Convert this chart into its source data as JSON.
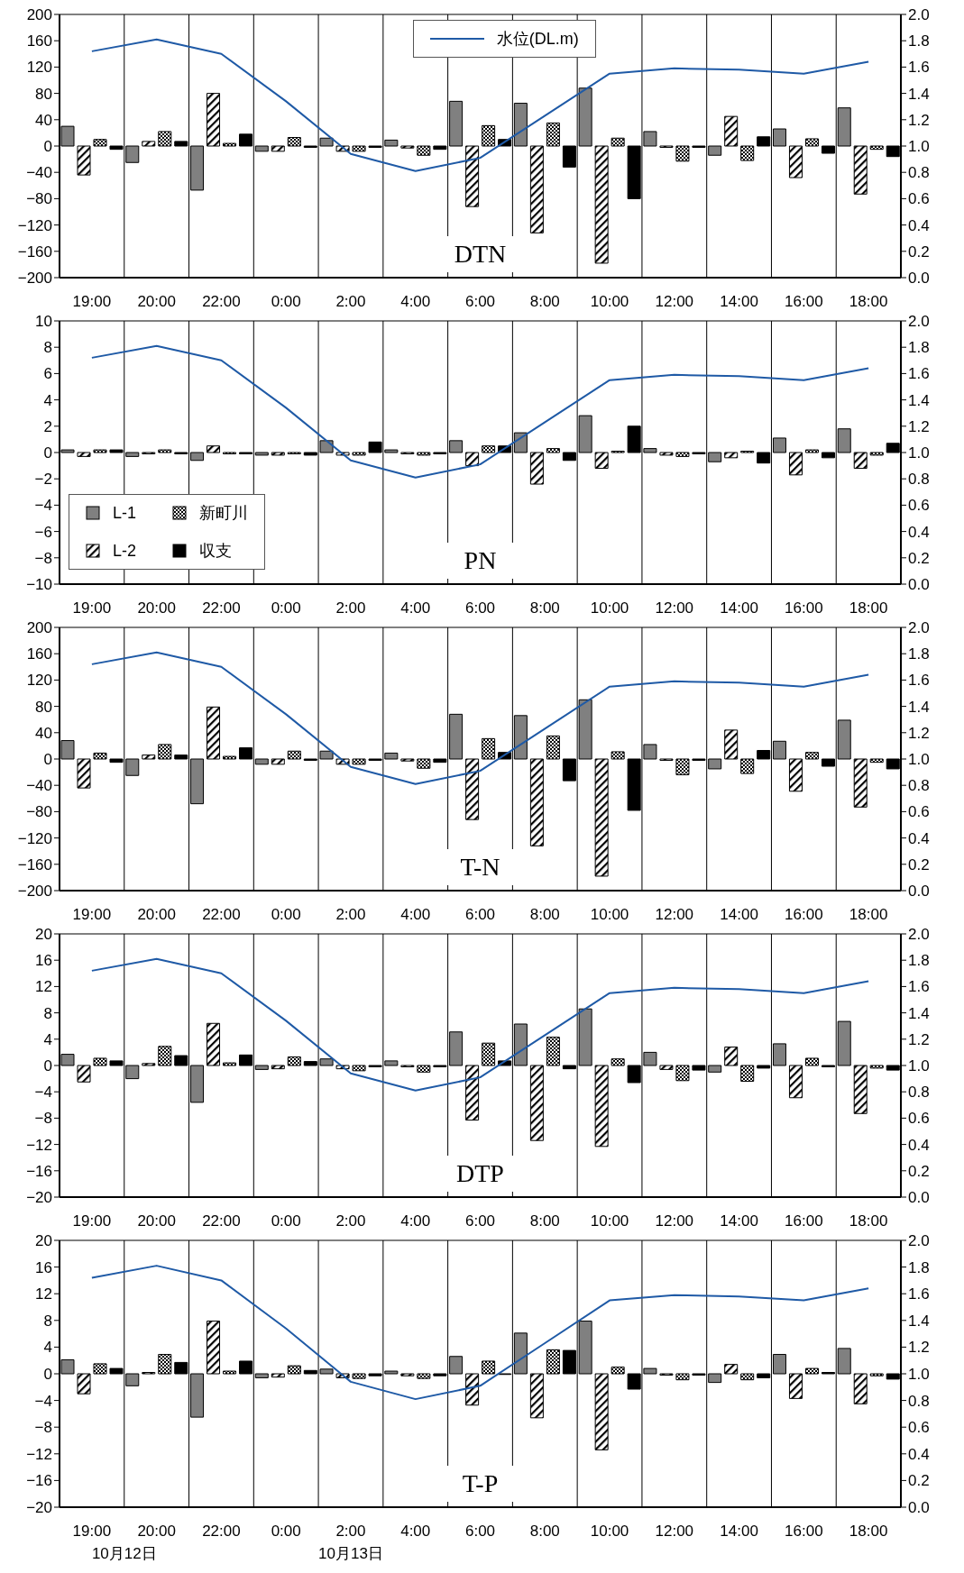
{
  "chart_data": [
    {
      "type": "bar",
      "title": "DTN",
      "categories": [
        "19:00",
        "20:00",
        "22:00",
        "0:00",
        "2:00",
        "4:00",
        "6:00",
        "8:00",
        "10:00",
        "12:00",
        "14:00",
        "16:00",
        "18:00"
      ],
      "series": [
        {
          "color": "#808080",
          "values": [
            30,
            -25,
            -67,
            -8,
            12,
            9,
            68,
            65,
            88,
            22,
            -14,
            26,
            58
          ]
        },
        {
          "color": "#000000",
          "values": [
            -44,
            7,
            80,
            -8,
            -8,
            -3,
            -92,
            -132,
            -178,
            -2,
            45,
            -48,
            -73
          ]
        },
        {
          "color": "#000000",
          "values": [
            10,
            22,
            4,
            13,
            -8,
            -14,
            31,
            35,
            12,
            -23,
            -22,
            11,
            -5
          ]
        },
        {
          "color": "#000000",
          "values": [
            -5,
            7,
            18,
            -2,
            -2,
            -5,
            10,
            -32,
            -80,
            -2,
            14,
            -11,
            -16
          ]
        },
        {
          "type": "line",
          "axis": "y2",
          "name": "水位(DL.m)",
          "color": "#1f5aa6",
          "values": [
            1.72,
            1.81,
            1.7,
            1.34,
            0.94,
            0.81,
            0.91,
            1.23,
            1.55,
            1.59,
            1.58,
            1.55,
            1.64
          ]
        }
      ],
      "ylim": [
        -200,
        200
      ],
      "yticks": [
        -200,
        -160,
        -120,
        -80,
        -40,
        0,
        40,
        80,
        120,
        160,
        200
      ],
      "y2lim": [
        0,
        2
      ],
      "y2ticks": [
        {
          "value": 0,
          "label": "0.0"
        },
        {
          "value": 0.2,
          "label": "0.2"
        },
        {
          "value": 0.4,
          "label": "0.4"
        },
        {
          "value": 0.6,
          "label": "0.6"
        },
        {
          "value": 0.8,
          "label": "0.8"
        },
        {
          "value": 1,
          "label": "1.0"
        },
        {
          "value": 1.2,
          "label": "1.2"
        },
        {
          "value": 1.4,
          "label": "1.4"
        },
        {
          "value": 1.6,
          "label": "1.6"
        },
        {
          "value": 1.8,
          "label": "1.8"
        },
        {
          "value": 2,
          "label": "2.0"
        }
      ],
      "grid": true,
      "legend": "top"
    },
    {
      "type": "bar",
      "title": "PN",
      "categories": [
        "19:00",
        "20:00",
        "22:00",
        "0:00",
        "2:00",
        "4:00",
        "6:00",
        "8:00",
        "10:00",
        "12:00",
        "14:00",
        "16:00",
        "18:00"
      ],
      "series": [
        {
          "name": "L-1",
          "color": "#808080",
          "values": [
            0.2,
            -0.3,
            -0.6,
            -0.2,
            0.9,
            0.2,
            0.9,
            1.5,
            2.8,
            0.3,
            -0.7,
            1.1,
            1.8
          ]
        },
        {
          "name": "L-2",
          "color": "#000000",
          "values": [
            -0.3,
            -0.1,
            0.5,
            -0.2,
            -0.2,
            -0.1,
            -1.0,
            -2.4,
            -1.2,
            -0.2,
            -0.4,
            -1.7,
            -1.2
          ]
        },
        {
          "name": "新町川",
          "color": "#000000",
          "values": [
            0.2,
            0.2,
            -0.1,
            -0.1,
            -0.2,
            -0.2,
            0.5,
            0.3,
            0.1,
            -0.3,
            0.1,
            0.2,
            -0.2
          ]
        },
        {
          "name": "収支",
          "color": "#000000",
          "values": [
            0.2,
            -0.1,
            -0.1,
            -0.2,
            0.8,
            -0.1,
            0.5,
            -0.6,
            2.0,
            -0.1,
            -0.8,
            -0.4,
            0.7
          ]
        },
        {
          "type": "line",
          "axis": "y2",
          "color": "#1f5aa6",
          "values": [
            1.72,
            1.81,
            1.7,
            1.34,
            0.94,
            0.81,
            0.91,
            1.23,
            1.55,
            1.59,
            1.58,
            1.55,
            1.64
          ]
        }
      ],
      "ylim": [
        -10,
        10
      ],
      "yticks": [
        -10,
        -8,
        -6,
        -4,
        -2,
        0,
        2,
        4,
        6,
        8,
        10
      ],
      "y2lim": [
        0,
        2
      ],
      "y2ticks": [
        {
          "value": 0,
          "label": "0.0"
        },
        {
          "value": 0.2,
          "label": "0.2"
        },
        {
          "value": 0.4,
          "label": "0.4"
        },
        {
          "value": 0.6,
          "label": "0.6"
        },
        {
          "value": 0.8,
          "label": "0.8"
        },
        {
          "value": 1,
          "label": "1.0"
        },
        {
          "value": 1.2,
          "label": "1.2"
        },
        {
          "value": 1.4,
          "label": "1.4"
        },
        {
          "value": 1.6,
          "label": "1.6"
        },
        {
          "value": 1.8,
          "label": "1.8"
        },
        {
          "value": 2,
          "label": "2.0"
        }
      ],
      "grid": true,
      "legend": "bottom left"
    },
    {
      "type": "bar",
      "title": "T-N",
      "categories": [
        "19:00",
        "20:00",
        "22:00",
        "0:00",
        "2:00",
        "4:00",
        "6:00",
        "8:00",
        "10:00",
        "12:00",
        "14:00",
        "16:00",
        "18:00"
      ],
      "series": [
        {
          "color": "#808080",
          "values": [
            28,
            -25,
            -68,
            -8,
            12,
            9,
            68,
            66,
            90,
            22,
            -15,
            27,
            59
          ]
        },
        {
          "color": "#000000",
          "values": [
            -44,
            6,
            79,
            -8,
            -8,
            -3,
            -92,
            -132,
            -178,
            -2,
            44,
            -49,
            -73
          ]
        },
        {
          "color": "#000000",
          "values": [
            9,
            22,
            4,
            12,
            -8,
            -14,
            31,
            35,
            11,
            -24,
            -22,
            10,
            -5
          ]
        },
        {
          "color": "#000000",
          "values": [
            -5,
            6,
            17,
            -2,
            -2,
            -5,
            10,
            -33,
            -78,
            -2,
            13,
            -11,
            -15
          ]
        },
        {
          "type": "line",
          "axis": "y2",
          "color": "#1f5aa6",
          "values": [
            1.72,
            1.81,
            1.7,
            1.34,
            0.94,
            0.81,
            0.91,
            1.23,
            1.55,
            1.59,
            1.58,
            1.55,
            1.64
          ]
        }
      ],
      "ylim": [
        -200,
        200
      ],
      "yticks": [
        -200,
        -160,
        -120,
        -80,
        -40,
        0,
        40,
        80,
        120,
        160,
        200
      ],
      "y2lim": [
        0,
        2
      ],
      "y2ticks": [
        {
          "value": 0,
          "label": "0.0"
        },
        {
          "value": 0.2,
          "label": "0.2"
        },
        {
          "value": 0.4,
          "label": "0.4"
        },
        {
          "value": 0.6,
          "label": "0.6"
        },
        {
          "value": 0.8,
          "label": "0.8"
        },
        {
          "value": 1,
          "label": "1.0"
        },
        {
          "value": 1.2,
          "label": "1.2"
        },
        {
          "value": 1.4,
          "label": "1.4"
        },
        {
          "value": 1.6,
          "label": "1.6"
        },
        {
          "value": 1.8,
          "label": "1.8"
        },
        {
          "value": 2,
          "label": "2.0"
        }
      ],
      "grid": true
    },
    {
      "type": "bar",
      "title": "DTP",
      "categories": [
        "19:00",
        "20:00",
        "22:00",
        "0:00",
        "2:00",
        "4:00",
        "6:00",
        "8:00",
        "10:00",
        "12:00",
        "14:00",
        "16:00",
        "18:00"
      ],
      "series": [
        {
          "color": "#808080",
          "values": [
            1.7,
            -2.0,
            -5.6,
            -0.6,
            1.0,
            0.7,
            5.1,
            6.3,
            8.6,
            2.0,
            -1.0,
            3.3,
            6.7
          ]
        },
        {
          "color": "#000000",
          "values": [
            -2.5,
            0.3,
            6.4,
            -0.5,
            -0.5,
            -0.2,
            -8.3,
            -11.4,
            -12.3,
            -0.6,
            2.8,
            -4.9,
            -7.3
          ]
        },
        {
          "color": "#000000",
          "values": [
            1.1,
            2.9,
            0.4,
            1.3,
            -0.8,
            -1.0,
            3.4,
            4.3,
            1.0,
            -2.3,
            -2.4,
            1.1,
            -0.4
          ]
        },
        {
          "color": "#000000",
          "values": [
            0.7,
            1.5,
            1.6,
            0.6,
            -0.2,
            -0.2,
            0.7,
            -0.5,
            -2.6,
            -0.7,
            -0.4,
            -0.2,
            -0.7
          ]
        },
        {
          "type": "line",
          "axis": "y2",
          "color": "#1f5aa6",
          "values": [
            1.72,
            1.81,
            1.7,
            1.34,
            0.94,
            0.81,
            0.91,
            1.23,
            1.55,
            1.59,
            1.58,
            1.55,
            1.64
          ]
        }
      ],
      "ylim": [
        -20,
        20
      ],
      "yticks": [
        -20,
        -16,
        -12,
        -8,
        -4,
        0,
        4,
        8,
        12,
        16,
        20
      ],
      "y2lim": [
        0,
        2
      ],
      "y2ticks": [
        {
          "value": 0,
          "label": "0.0"
        },
        {
          "value": 0.2,
          "label": "0.2"
        },
        {
          "value": 0.4,
          "label": "0.4"
        },
        {
          "value": 0.6,
          "label": "0.6"
        },
        {
          "value": 0.8,
          "label": "0.8"
        },
        {
          "value": 1,
          "label": "1.0"
        },
        {
          "value": 1.2,
          "label": "1.2"
        },
        {
          "value": 1.4,
          "label": "1.4"
        },
        {
          "value": 1.6,
          "label": "1.6"
        },
        {
          "value": 1.8,
          "label": "1.8"
        },
        {
          "value": 2,
          "label": "2.0"
        }
      ],
      "grid": true
    },
    {
      "type": "bar",
      "title": "T-P",
      "categories": [
        "19:00",
        "20:00",
        "22:00",
        "0:00",
        "2:00",
        "4:00",
        "6:00",
        "8:00",
        "10:00",
        "12:00",
        "14:00",
        "16:00",
        "18:00"
      ],
      "series": [
        {
          "color": "#808080",
          "values": [
            2.1,
            -1.8,
            -6.5,
            -0.6,
            0.7,
            0.4,
            2.6,
            6.1,
            7.9,
            0.8,
            -1.3,
            2.9,
            3.8
          ]
        },
        {
          "color": "#000000",
          "values": [
            -3.0,
            0.2,
            7.9,
            -0.5,
            -0.6,
            -0.3,
            -4.7,
            -6.6,
            -11.4,
            -0.2,
            1.4,
            -3.7,
            -4.5
          ]
        },
        {
          "color": "#000000",
          "values": [
            1.5,
            2.9,
            0.4,
            1.2,
            -0.7,
            -0.7,
            1.9,
            3.6,
            1.0,
            -0.9,
            -0.9,
            0.8,
            -0.3
          ]
        },
        {
          "color": "#000000",
          "values": [
            0.8,
            1.7,
            1.9,
            0.5,
            -0.3,
            -0.3,
            -0.1,
            3.5,
            -2.3,
            -0.2,
            -0.6,
            0.2,
            -0.8
          ]
        },
        {
          "type": "line",
          "axis": "y2",
          "color": "#1f5aa6",
          "values": [
            1.72,
            1.81,
            1.7,
            1.34,
            0.94,
            0.81,
            0.91,
            1.23,
            1.55,
            1.59,
            1.58,
            1.55,
            1.64
          ]
        }
      ],
      "ylim": [
        -20,
        20
      ],
      "yticks": [
        -20,
        -16,
        -12,
        -8,
        -4,
        0,
        4,
        8,
        12,
        16,
        20
      ],
      "y2lim": [
        0,
        2
      ],
      "y2ticks": [
        {
          "value": 0,
          "label": "0.0"
        },
        {
          "value": 0.2,
          "label": "0.2"
        },
        {
          "value": 0.4,
          "label": "0.4"
        },
        {
          "value": 0.6,
          "label": "0.6"
        },
        {
          "value": 0.8,
          "label": "0.8"
        },
        {
          "value": 1,
          "label": "1.0"
        },
        {
          "value": 1.2,
          "label": "1.2"
        },
        {
          "value": 1.4,
          "label": "1.4"
        },
        {
          "value": 1.6,
          "label": "1.6"
        },
        {
          "value": 1.8,
          "label": "1.8"
        },
        {
          "value": 2,
          "label": "2.0"
        }
      ],
      "grid": true,
      "annotations": [
        "10月12日",
        "10月13日"
      ]
    }
  ]
}
